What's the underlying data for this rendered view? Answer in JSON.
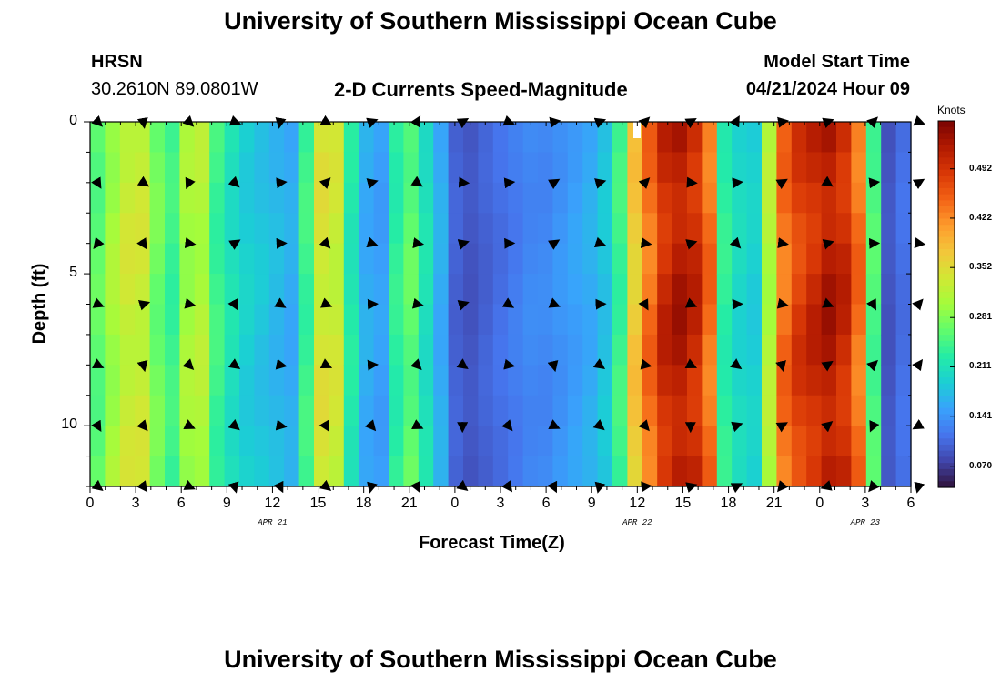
{
  "header": {
    "title_top": "University of Southern Mississippi Ocean Cube",
    "title_bottom": "University of Southern Mississippi Ocean Cube",
    "station": "HRSN",
    "coords": "30.2610N  89.0801W",
    "subtitle": "2-D Currents Speed-Magnitude",
    "model_label": "Model Start Time",
    "model_time": "04/21/2024 Hour 09"
  },
  "colors": {
    "arrow": "#000000",
    "marker": "#ffffff",
    "scale": [
      "#30123b",
      "#4145ab",
      "#4675ed",
      "#39a2fc",
      "#1bcfd4",
      "#24eca6",
      "#61fc6c",
      "#a4fc3b",
      "#d1e834",
      "#f3c63a",
      "#fe9b2d",
      "#f36315",
      "#d93806",
      "#b11901",
      "#7a0402"
    ]
  },
  "chart_data": {
    "type": "heatmap",
    "xlabel": "Forecast Time(Z)",
    "ylabel": "Depth (ft)",
    "x_hours": [
      0,
      1,
      2,
      3,
      4,
      5,
      6,
      7,
      8,
      9,
      10,
      11,
      12,
      13,
      14,
      15,
      16,
      17,
      18,
      19,
      20,
      21,
      22,
      23,
      24,
      25,
      26,
      27,
      28,
      29,
      30,
      31,
      32,
      33,
      34,
      35,
      36,
      37,
      38,
      39,
      40,
      41,
      42,
      43,
      44,
      45,
      46,
      47,
      48,
      49,
      50,
      51,
      52,
      53,
      54
    ],
    "x_range": [
      0,
      54
    ],
    "y_range": [
      0,
      12
    ],
    "depths_ft": [
      0,
      1,
      2,
      3,
      4,
      5,
      6,
      7,
      8,
      9,
      10,
      11,
      12
    ],
    "x_tick_labels": [
      "0",
      "3",
      "6",
      "9",
      "12",
      "15",
      "18",
      "21",
      "0",
      "3",
      "6",
      "9",
      "12",
      "15",
      "18",
      "21",
      "0",
      "3",
      "6"
    ],
    "y_tick_labels": [
      "0",
      "5",
      "10"
    ],
    "y_tick_values": [
      0,
      5,
      10
    ],
    "date_labels": [
      {
        "text": "APR 21",
        "hour": 12
      },
      {
        "text": "APR 22",
        "hour": 36
      },
      {
        "text": "APR 23",
        "hour": 51
      }
    ],
    "column_speed_knots": [
      0.26,
      0.3,
      0.33,
      0.33,
      0.27,
      0.24,
      0.3,
      0.31,
      0.24,
      0.21,
      0.19,
      0.18,
      0.17,
      0.16,
      0.24,
      0.34,
      0.33,
      0.22,
      0.16,
      0.15,
      0.23,
      0.26,
      0.21,
      0.16,
      0.1,
      0.09,
      0.1,
      0.11,
      0.12,
      0.13,
      0.13,
      0.14,
      0.15,
      0.16,
      0.18,
      0.24,
      0.37,
      0.44,
      0.5,
      0.52,
      0.5,
      0.44,
      0.23,
      0.2,
      0.19,
      0.31,
      0.44,
      0.48,
      0.5,
      0.52,
      0.5,
      0.44,
      0.25,
      0.09,
      0.11
    ],
    "colorbar": {
      "title": "Knots",
      "tick_labels": [
        "0.492",
        "0.422",
        "0.352",
        "0.281",
        "0.211",
        "0.141",
        "0.070"
      ],
      "tick_values": [
        0.492,
        0.422,
        0.352,
        0.281,
        0.211,
        0.141,
        0.07
      ],
      "range": [
        0.04,
        0.56
      ]
    }
  }
}
